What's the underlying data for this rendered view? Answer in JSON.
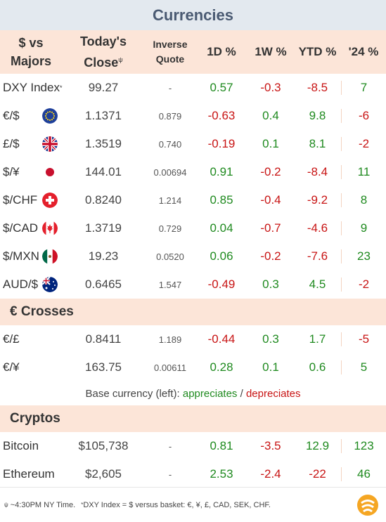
{
  "title": "Currencies",
  "header": {
    "name_l1": "$ vs",
    "name_l2": "Majors",
    "close_l1": "Today's",
    "close_l2": "Close",
    "close_mark": "ψ",
    "inv_l1": "Inverse",
    "inv_l2": "Quote",
    "d1": "1D %",
    "w1": "1W %",
    "ytd": "YTD %",
    "y24": "'24 %"
  },
  "majors": [
    {
      "name": "DXY Index",
      "mark": "*",
      "flag": "",
      "close": "99.27",
      "inv": "-",
      "d1": "0.57",
      "w1": "-0.3",
      "ytd": "-8.5",
      "y24": "7"
    },
    {
      "name": "€/$",
      "flag": "eu-flag-icon",
      "close": "1.1371",
      "inv": "0.879",
      "d1": "-0.63",
      "w1": "0.4",
      "ytd": "9.8",
      "y24": "-6"
    },
    {
      "name": "£/$",
      "flag": "uk-flag-icon",
      "close": "1.3519",
      "inv": "0.740",
      "d1": "-0.19",
      "w1": "0.1",
      "ytd": "8.1",
      "y24": "-2"
    },
    {
      "name": "$/¥",
      "flag": "japan-flag-icon",
      "close": "144.01",
      "inv": "0.00694",
      "d1": "0.91",
      "w1": "-0.2",
      "ytd": "-8.4",
      "y24": "11"
    },
    {
      "name": "$/CHF",
      "flag": "swiss-flag-icon",
      "close": "0.8240",
      "inv": "1.214",
      "d1": "0.85",
      "w1": "-0.4",
      "ytd": "-9.2",
      "y24": "8"
    },
    {
      "name": "$/CAD",
      "flag": "canada-flag-icon",
      "close": "1.3719",
      "inv": "0.729",
      "d1": "0.04",
      "w1": "-0.7",
      "ytd": "-4.6",
      "y24": "9"
    },
    {
      "name": "$/MXN",
      "flag": "mexico-flag-icon",
      "close": "19.23",
      "inv": "0.0520",
      "d1": "0.06",
      "w1": "-0.2",
      "ytd": "-7.6",
      "y24": "23"
    },
    {
      "name": "AUD/$",
      "flag": "australia-flag-icon",
      "close": "0.6465",
      "inv": "1.547",
      "d1": "-0.49",
      "w1": "0.3",
      "ytd": "4.5",
      "y24": "-2"
    }
  ],
  "crosses_title": "€ Crosses",
  "crosses": [
    {
      "name": "€/£",
      "close": "0.8411",
      "inv": "1.189",
      "d1": "-0.44",
      "w1": "0.3",
      "ytd": "1.7",
      "y24": "-5"
    },
    {
      "name": "€/¥",
      "close": "163.75",
      "inv": "0.00611",
      "d1": "0.28",
      "w1": "0.1",
      "ytd": "0.6",
      "y24": "5"
    }
  ],
  "legend": {
    "prefix": "Base currency (left): ",
    "up": "appreciates",
    "slash": " / ",
    "down": "depreciates"
  },
  "cryptos_title": "Cryptos",
  "cryptos": [
    {
      "name": "Bitcoin",
      "close": "$105,738",
      "inv": "-",
      "d1": "0.81",
      "w1": "-3.5",
      "ytd": "12.9",
      "y24": "123"
    },
    {
      "name": "Ethereum",
      "close": "$2,605",
      "inv": "-",
      "d1": "2.53",
      "w1": "-2.4",
      "ytd": "-22",
      "y24": "46"
    }
  ],
  "footer": {
    "mark1": "ψ",
    "note1": " ~4:30PM NY Time.",
    "mark2": "*",
    "note2": "DXY Index = $ versus basket: €, ¥, £, CAD, SEK, CHF."
  },
  "colors": {
    "positive": "#1f8a1f",
    "negative": "#c81414",
    "header_bg": "#fce5d8",
    "title_bg": "#e3e9ef"
  }
}
